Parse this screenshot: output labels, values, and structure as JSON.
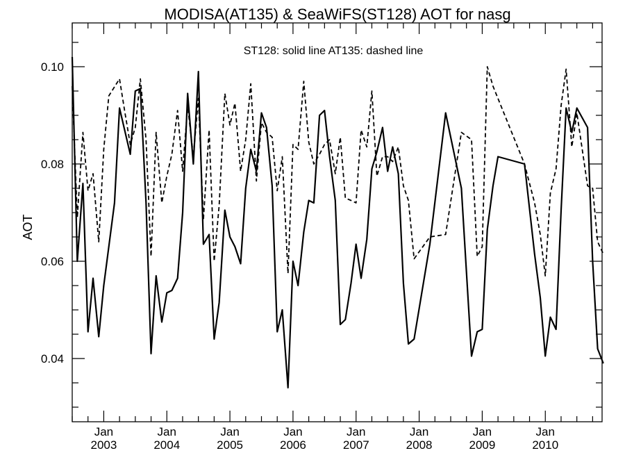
{
  "chart_data": {
    "type": "line",
    "title": "MODISA(AT135) & SeaWiFS(ST128)  AOT for nasg",
    "annotation": "ST128: solid line   AT135: dashed line",
    "ylabel": "AOT",
    "xlabel": "",
    "xlim": [
      2002.5,
      2010.9
    ],
    "ylim": [
      0.027,
      0.109
    ],
    "y_ticks": [
      0.04,
      0.06,
      0.08,
      0.1
    ],
    "y_tick_labels": [
      "0.04",
      "0.06",
      "0.08",
      "0.10"
    ],
    "x_ticks": [
      2003,
      2004,
      2005,
      2006,
      2007,
      2008,
      2009,
      2010
    ],
    "x_tick_month_labels": [
      "Jan",
      "Jan",
      "Jan",
      "Jan",
      "Jan",
      "Jan",
      "Jan",
      "Jan"
    ],
    "x_tick_year_labels": [
      "2003",
      "2004",
      "2005",
      "2006",
      "2007",
      "2008",
      "2009",
      "2010"
    ],
    "grid": false,
    "series": [
      {
        "style": "solid",
        "x": [
          2002.5,
          2002.58,
          2002.67,
          2002.75,
          2002.83,
          2002.92,
          2003.0,
          2003.17,
          2003.25,
          2003.42,
          2003.5,
          2003.58,
          2003.67,
          2003.75,
          2003.83,
          2003.92,
          2004.0,
          2004.08,
          2004.17,
          2004.25,
          2004.33,
          2004.42,
          2004.5,
          2004.58,
          2004.67,
          2004.75,
          2004.83,
          2004.92,
          2005.0,
          2005.08,
          2005.17,
          2005.25,
          2005.33,
          2005.42,
          2005.5,
          2005.58,
          2005.67,
          2005.75,
          2005.83,
          2005.92,
          2006.0,
          2006.08,
          2006.17,
          2006.25,
          2006.33,
          2006.42,
          2006.5,
          2006.58,
          2006.67,
          2006.75,
          2006.83,
          2006.92,
          2007.0,
          2007.08,
          2007.17,
          2007.25,
          2007.33,
          2007.42,
          2007.5,
          2007.58,
          2007.67,
          2007.75,
          2007.83,
          2007.92,
          2008.17,
          2008.42,
          2008.67,
          2008.83,
          2008.92,
          2009.0,
          2009.08,
          2009.17,
          2009.25,
          2009.67,
          2009.83,
          2009.92,
          2010.0,
          2010.08,
          2010.17,
          2010.25,
          2010.33,
          2010.42,
          2010.5,
          2010.67,
          2010.75,
          2010.83,
          2010.92
        ],
        "values": [
          0.102,
          0.06,
          0.076,
          0.0455,
          0.0565,
          0.0445,
          0.055,
          0.072,
          0.0915,
          0.082,
          0.095,
          0.0955,
          0.072,
          0.041,
          0.057,
          0.0475,
          0.0535,
          0.054,
          0.0565,
          0.07,
          0.0945,
          0.08,
          0.099,
          0.0635,
          0.0655,
          0.044,
          0.0515,
          0.0705,
          0.065,
          0.063,
          0.0595,
          0.075,
          0.083,
          0.0785,
          0.0905,
          0.0875,
          0.0755,
          0.0455,
          0.05,
          0.034,
          0.06,
          0.055,
          0.066,
          0.0725,
          0.072,
          0.09,
          0.091,
          0.0815,
          0.0725,
          0.047,
          0.048,
          0.0555,
          0.0635,
          0.0565,
          0.0645,
          0.079,
          0.0825,
          0.0875,
          0.0785,
          0.0835,
          0.078,
          0.0555,
          0.043,
          0.044,
          0.0635,
          0.0905,
          0.075,
          0.0405,
          0.0455,
          0.046,
          0.0665,
          0.0755,
          0.0815,
          0.08,
          0.0615,
          0.0525,
          0.0405,
          0.0485,
          0.046,
          0.0705,
          0.0915,
          0.0865,
          0.0915,
          0.0875,
          0.06,
          0.042,
          0.039
        ]
      },
      {
        "style": "dashed",
        "x": [
          2002.5,
          2002.58,
          2002.67,
          2002.75,
          2002.83,
          2002.92,
          2003.0,
          2003.08,
          2003.25,
          2003.33,
          2003.42,
          2003.5,
          2003.58,
          2003.67,
          2003.75,
          2003.83,
          2003.92,
          2004.0,
          2004.08,
          2004.17,
          2004.25,
          2004.33,
          2004.42,
          2004.5,
          2004.58,
          2004.67,
          2004.75,
          2004.83,
          2004.92,
          2005.0,
          2005.08,
          2005.17,
          2005.25,
          2005.33,
          2005.42,
          2005.5,
          2005.58,
          2005.67,
          2005.75,
          2005.83,
          2005.92,
          2006.0,
          2006.08,
          2006.17,
          2006.25,
          2006.33,
          2006.42,
          2006.5,
          2006.58,
          2006.67,
          2006.75,
          2006.83,
          2006.92,
          2007.0,
          2007.08,
          2007.17,
          2007.25,
          2007.33,
          2007.42,
          2007.5,
          2007.58,
          2007.67,
          2007.75,
          2007.83,
          2007.92,
          2008.17,
          2008.42,
          2008.67,
          2008.83,
          2008.92,
          2009.0,
          2009.08,
          2009.17,
          2009.67,
          2009.83,
          2009.92,
          2010.0,
          2010.08,
          2010.17,
          2010.25,
          2010.33,
          2010.42,
          2010.5,
          2010.67,
          2010.75,
          2010.83,
          2010.92
        ],
        "values": [
          0.096,
          0.069,
          0.0865,
          0.0745,
          0.078,
          0.064,
          0.083,
          0.094,
          0.0975,
          0.091,
          0.084,
          0.0875,
          0.0975,
          0.085,
          0.061,
          0.0865,
          0.072,
          0.0775,
          0.082,
          0.091,
          0.0785,
          0.092,
          0.0815,
          0.0935,
          0.0685,
          0.087,
          0.06,
          0.0715,
          0.0945,
          0.088,
          0.0925,
          0.0785,
          0.085,
          0.0965,
          0.0765,
          0.0885,
          0.0865,
          0.0855,
          0.0745,
          0.0815,
          0.0575,
          0.084,
          0.083,
          0.097,
          0.0845,
          0.08,
          0.082,
          0.084,
          0.085,
          0.078,
          0.0855,
          0.073,
          0.0725,
          0.072,
          0.087,
          0.0835,
          0.095,
          0.0775,
          0.0815,
          0.0815,
          0.0805,
          0.0835,
          0.0755,
          0.0725,
          0.0605,
          0.065,
          0.0655,
          0.0865,
          0.085,
          0.061,
          0.063,
          0.1,
          0.096,
          0.08,
          0.072,
          0.0655,
          0.057,
          0.074,
          0.079,
          0.092,
          0.0995,
          0.0835,
          0.0905,
          0.0755,
          0.075,
          0.064,
          0.0615
        ]
      }
    ]
  }
}
